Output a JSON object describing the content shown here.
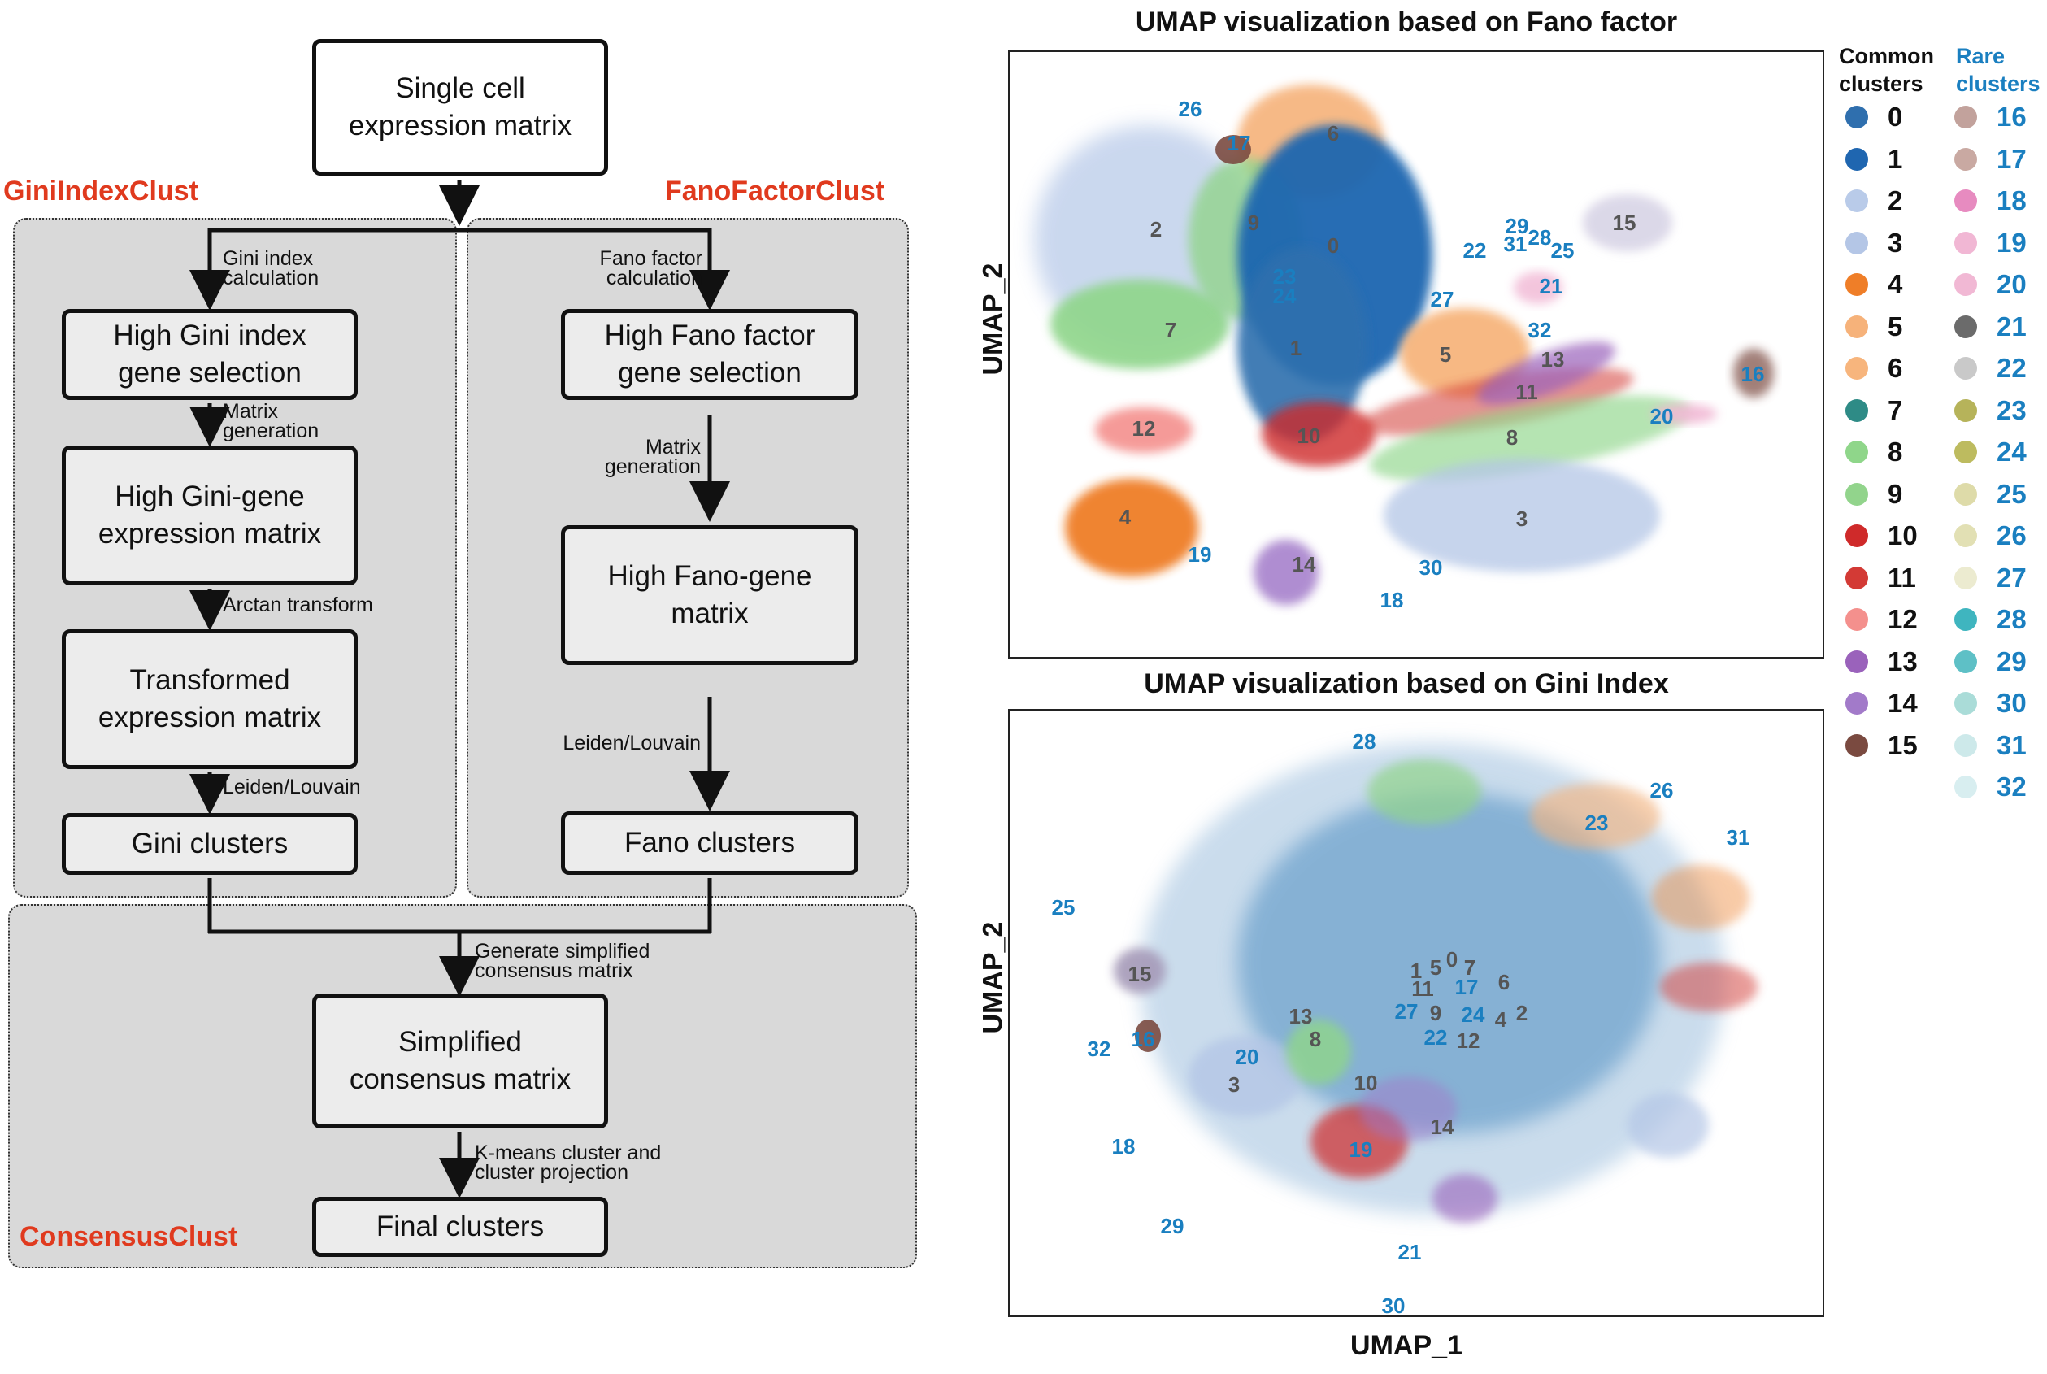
{
  "workflow": {
    "gini_label": "GiniIndexClust",
    "fano_label": "FanoFactorClust",
    "consensus_label": "ConsensusClust",
    "boxes": {
      "input": "Single cell\nexpression matrix",
      "gini_select": "High Gini index\ngene selection",
      "gini_matrix": "High Gini-gene\nexpression matrix",
      "gini_transformed": "Transformed\nexpression matrix",
      "gini_clusters": "Gini clusters",
      "fano_select": "High Fano factor\ngene selection",
      "fano_matrix": "High Fano-gene\nmatrix",
      "fano_clusters": "Fano clusters",
      "consensus_matrix": "Simplified\nconsensus matrix",
      "final_clusters": "Final clusters"
    },
    "steps": {
      "gini_calc": "Gini index\ncalculation",
      "gini_matrix_gen": "Matrix\ngeneration",
      "arctan": "Arctan transform",
      "gini_leiden": "Leiden/Louvain",
      "fano_calc": "Fano factor\ncalculation",
      "fano_matrix_gen": "Matrix\ngeneration",
      "fano_leiden": "Leiden/Louvain",
      "gen_consensus": "Generate simplified\nconsensus matrix",
      "kmeans": "K-means cluster and\ncluster projection"
    }
  },
  "umap": {
    "fano_title": "UMAP visualization based on Fano factor",
    "gini_title": "UMAP visualization based on Gini Index",
    "ylabel": "UMAP_2",
    "xlabel": "UMAP_1"
  },
  "legend": {
    "common_header": "Common\nclusters",
    "rare_header": "Rare\nclusters",
    "common_color": "#111111",
    "rare_color": "#1a7fc0",
    "common": [
      {
        "label": "0",
        "color": "#2f6fae"
      },
      {
        "label": "1",
        "color": "#1f66b0"
      },
      {
        "label": "2",
        "color": "#b9cbe9"
      },
      {
        "label": "3",
        "color": "#b4c6e6"
      },
      {
        "label": "4",
        "color": "#ef7e28"
      },
      {
        "label": "5",
        "color": "#f6b27a"
      },
      {
        "label": "6",
        "color": "#f7b57d"
      },
      {
        "label": "7",
        "color": "#2e8b86"
      },
      {
        "label": "8",
        "color": "#8fd68a"
      },
      {
        "label": "9",
        "color": "#92d48c"
      },
      {
        "label": "10",
        "color": "#cf2a2a"
      },
      {
        "label": "11",
        "color": "#d33a35"
      },
      {
        "label": "12",
        "color": "#f4908d"
      },
      {
        "label": "13",
        "color": "#9a62bb"
      },
      {
        "label": "14",
        "color": "#a27ac9"
      },
      {
        "label": "15",
        "color": "#7a4a40"
      }
    ],
    "rare": [
      {
        "label": "16",
        "color": "#c2a29c"
      },
      {
        "label": "17",
        "color": "#c9a9a2"
      },
      {
        "label": "18",
        "color": "#e78bc0"
      },
      {
        "label": "19",
        "color": "#f1b7d4"
      },
      {
        "label": "20",
        "color": "#f1b8d4"
      },
      {
        "label": "21",
        "color": "#6b6b6b"
      },
      {
        "label": "22",
        "color": "#c9c9c9"
      },
      {
        "label": "23",
        "color": "#b6b35a"
      },
      {
        "label": "24",
        "color": "#bdbb5f"
      },
      {
        "label": "25",
        "color": "#dedba9"
      },
      {
        "label": "26",
        "color": "#e2e0b4"
      },
      {
        "label": "27",
        "color": "#ecebd0"
      },
      {
        "label": "28",
        "color": "#3fb5bf"
      },
      {
        "label": "29",
        "color": "#5ec0c6"
      },
      {
        "label": "30",
        "color": "#aadcd8"
      },
      {
        "label": "31",
        "color": "#cde9ea"
      },
      {
        "label": "32",
        "color": "#d8eef0"
      }
    ]
  },
  "fano_clusters": {
    "common": [
      "6",
      "2",
      "9",
      "0",
      "7",
      "1",
      "12",
      "10",
      "4",
      "5",
      "13",
      "11",
      "8",
      "3",
      "14",
      "15"
    ],
    "rare": [
      "26",
      "17",
      "23",
      "24",
      "29",
      "31",
      "28",
      "25",
      "22",
      "21",
      "27",
      "32",
      "16",
      "20",
      "19",
      "30",
      "18"
    ]
  },
  "gini_clusters": {
    "common": [
      "15",
      "1",
      "5",
      "0",
      "7",
      "6",
      "11",
      "13",
      "8",
      "9",
      "4",
      "2",
      "12",
      "3",
      "10",
      "14"
    ],
    "rare": [
      "28",
      "26",
      "23",
      "31",
      "25",
      "17",
      "27",
      "24",
      "22",
      "32",
      "16",
      "20",
      "18",
      "19",
      "29",
      "21",
      "30"
    ]
  }
}
